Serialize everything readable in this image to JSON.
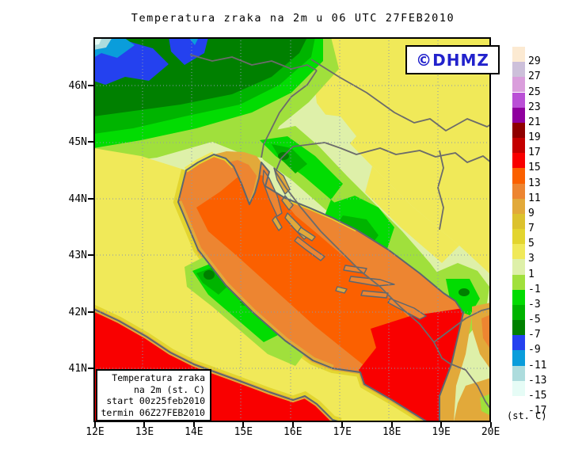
{
  "title": "Temperatura zraka na 2m u 06 UTC 27FEB2010",
  "watermark": {
    "text": "©DHMZ",
    "color": "#2222cc"
  },
  "info_box": {
    "lines": [
      "Temperatura zraka",
      "na 2m (st. C)",
      "start 00z25feb2010",
      "termin 06Z27FEB2010"
    ]
  },
  "colorbar": {
    "unit_label": "(st. C)",
    "cells": [
      {
        "label": "29",
        "color": "#fcead2"
      },
      {
        "label": "27",
        "color": "#cdc0da"
      },
      {
        "label": "25",
        "color": "#da9edc"
      },
      {
        "label": "23",
        "color": "#ba50d6"
      },
      {
        "label": "21",
        "color": "#8f009e"
      },
      {
        "label": "19",
        "color": "#8f0000"
      },
      {
        "label": "17",
        "color": "#c40000"
      },
      {
        "label": "15",
        "color": "#f90000"
      },
      {
        "label": "13",
        "color": "#fb6000"
      },
      {
        "label": "11",
        "color": "#ed8531"
      },
      {
        "label": "9",
        "color": "#e2a93a"
      },
      {
        "label": "7",
        "color": "#dcc22e"
      },
      {
        "label": "5",
        "color": "#e3d52f"
      },
      {
        "label": "3",
        "color": "#f0e959"
      },
      {
        "label": "1",
        "color": "#def0a9"
      },
      {
        "label": "-1",
        "color": "#a0e03c"
      },
      {
        "label": "-3",
        "color": "#02dc02"
      },
      {
        "label": "-5",
        "color": "#00b400"
      },
      {
        "label": "-7",
        "color": "#008000"
      },
      {
        "label": "-9",
        "color": "#2441ef"
      },
      {
        "label": "-11",
        "color": "#0a9ddb"
      },
      {
        "label": "-13",
        "color": "#addcdd"
      },
      {
        "label": "-15",
        "color": "#e6fcf6"
      },
      {
        "label": "-17",
        "color": "#ffffff"
      }
    ]
  },
  "axes": {
    "lon": [
      "12E",
      "13E",
      "14E",
      "15E",
      "16E",
      "17E",
      "18E",
      "19E",
      "20E"
    ],
    "lat": [
      "46N",
      "45N",
      "44N",
      "43N",
      "42N",
      "41N"
    ]
  },
  "chart_data": {
    "type": "heatmap",
    "title": "Temperatura zraka na 2m u 06 UTC 27FEB2010",
    "variable": "Temperatura zraka na 2m (st. C)",
    "run_start": "00z25feb2010",
    "valid_termin": "06Z27FEB2010",
    "x_axis_ticks": [
      "12E",
      "13E",
      "14E",
      "15E",
      "16E",
      "17E",
      "18E",
      "19E",
      "20E"
    ],
    "y_axis_ticks": [
      "46N",
      "45N",
      "44N",
      "43N",
      "42N",
      "41N"
    ],
    "scale_values_st_C": [
      29,
      27,
      25,
      23,
      21,
      19,
      17,
      15,
      13,
      11,
      9,
      7,
      5,
      3,
      1,
      -1,
      -3,
      -5,
      -7,
      -9,
      -11,
      -13,
      -15,
      -17
    ],
    "legend_position": "right",
    "grid": "dotted",
    "notable_values": {
      "adriatic_sea": "11 to 15",
      "southeast_adriatic": "15 to 17",
      "tyrrhenian_sea": "15 to 17",
      "dinarides_and_apennines": "-7 to 1",
      "alps_northwest": "-9 to -15",
      "pannonian_northeast": "3 to 5"
    }
  }
}
